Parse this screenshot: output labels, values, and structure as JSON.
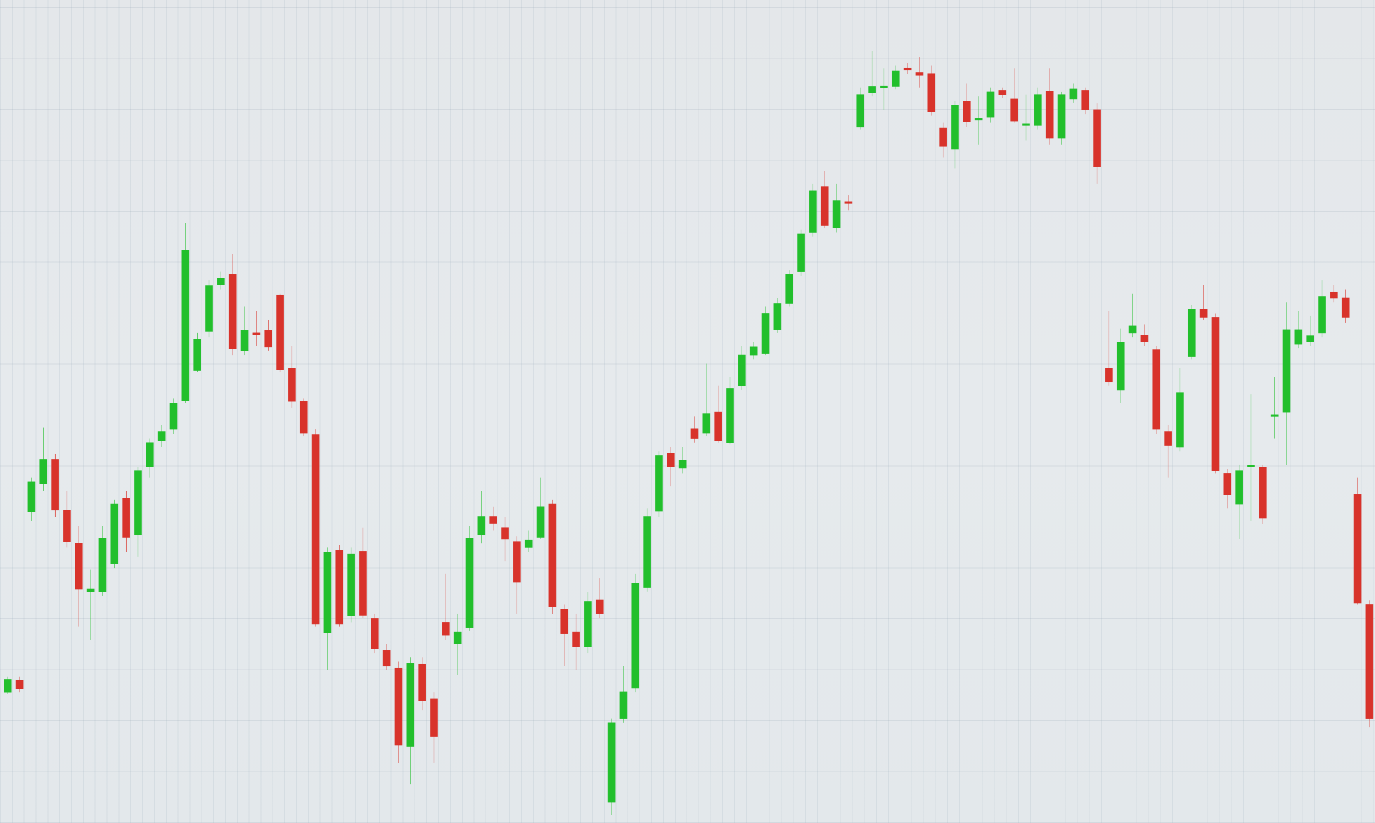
{
  "chart_data": {
    "type": "candlestick",
    "up_color": "#22bf2c",
    "down_color": "#d8332b",
    "ylim": [
      61,
      1000
    ],
    "open": [
      210,
      224,
      416,
      448,
      476,
      418,
      380,
      325,
      325,
      357,
      432,
      390,
      467,
      497,
      510,
      543,
      577,
      622,
      675,
      687,
      600,
      620,
      623,
      663,
      580,
      542,
      504,
      278,
      372,
      297,
      371,
      294,
      258,
      238,
      148,
      242,
      203,
      290,
      265,
      284,
      390,
      411,
      398,
      382,
      375,
      387,
      425,
      305,
      279,
      262,
      316,
      85,
      180,
      215,
      330,
      417,
      483,
      466,
      511,
      506,
      530,
      495,
      560,
      595,
      597,
      624,
      654,
      690,
      735,
      787,
      740,
      770,
      855,
      894,
      900,
      901,
      922,
      917,
      916,
      854,
      830,
      885,
      863,
      866,
      897,
      887,
      857,
      857,
      896,
      842,
      887,
      897,
      875,
      580,
      555,
      620,
      618,
      601,
      508,
      490,
      593,
      647,
      638,
      460,
      425,
      467,
      467,
      525,
      530,
      607,
      610,
      620,
      667,
      660,
      436,
      310
    ],
    "high": [
      228,
      228,
      455,
      512,
      482,
      440,
      400,
      350,
      400,
      430,
      440,
      467,
      500,
      515,
      545,
      745,
      620,
      680,
      690,
      710,
      650,
      645,
      635,
      665,
      605,
      545,
      510,
      375,
      378,
      375,
      398,
      300,
      265,
      245,
      250,
      250,
      210,
      345,
      300,
      400,
      440,
      422,
      410,
      388,
      395,
      455,
      430,
      310,
      300,
      324,
      340,
      180,
      240,
      345,
      420,
      485,
      490,
      490,
      525,
      585,
      560,
      570,
      605,
      610,
      650,
      660,
      692,
      738,
      790,
      805,
      790,
      777,
      900,
      942,
      922,
      925,
      928,
      935,
      925,
      860,
      885,
      905,
      890,
      900,
      900,
      922,
      892,
      900,
      922,
      895,
      905,
      900,
      882,
      645,
      625,
      665,
      630,
      605,
      515,
      580,
      652,
      675,
      642,
      465,
      470,
      550,
      470,
      570,
      655,
      645,
      640,
      680,
      675,
      670,
      455,
      315
    ],
    "low": [
      208,
      210,
      405,
      440,
      410,
      375,
      285,
      270,
      320,
      352,
      370,
      365,
      455,
      490,
      505,
      540,
      575,
      615,
      670,
      595,
      595,
      605,
      600,
      575,
      535,
      502,
      285,
      235,
      285,
      290,
      295,
      255,
      235,
      130,
      105,
      190,
      130,
      270,
      230,
      280,
      380,
      395,
      360,
      300,
      370,
      385,
      300,
      240,
      235,
      255,
      295,
      70,
      175,
      210,
      325,
      410,
      445,
      460,
      495,
      502,
      495,
      493,
      555,
      590,
      595,
      620,
      650,
      685,
      730,
      740,
      735,
      760,
      852,
      890,
      875,
      898,
      915,
      900,
      868,
      820,
      808,
      855,
      835,
      860,
      888,
      860,
      840,
      852,
      835,
      835,
      883,
      870,
      790,
      560,
      540,
      615,
      605,
      505,
      455,
      485,
      590,
      635,
      460,
      420,
      385,
      405,
      402,
      500,
      470,
      603,
      605,
      615,
      655,
      632,
      310,
      170
    ],
    "close": [
      225,
      214,
      450,
      476,
      418,
      382,
      328,
      328,
      386,
      425,
      387,
      463,
      495,
      508,
      540,
      715,
      613,
      674,
      683,
      602,
      623,
      618,
      604,
      578,
      542,
      506,
      288,
      370,
      288,
      368,
      298,
      260,
      240,
      150,
      243,
      200,
      160,
      275,
      279,
      386,
      411,
      403,
      385,
      336,
      384,
      422,
      308,
      277,
      262,
      314,
      300,
      175,
      211,
      335,
      411,
      480,
      467,
      475,
      500,
      528,
      497,
      557,
      595,
      604,
      642,
      654,
      687,
      733,
      782,
      743,
      771,
      769,
      892,
      901,
      902,
      919,
      920,
      914,
      872,
      833,
      880,
      861,
      865,
      895,
      892,
      862,
      859,
      892,
      842,
      892,
      899,
      875,
      810,
      564,
      610,
      628,
      610,
      510,
      492,
      552,
      647,
      638,
      463,
      435,
      463,
      469,
      409,
      527,
      624,
      624,
      617,
      662,
      660,
      638,
      312,
      180
    ]
  }
}
